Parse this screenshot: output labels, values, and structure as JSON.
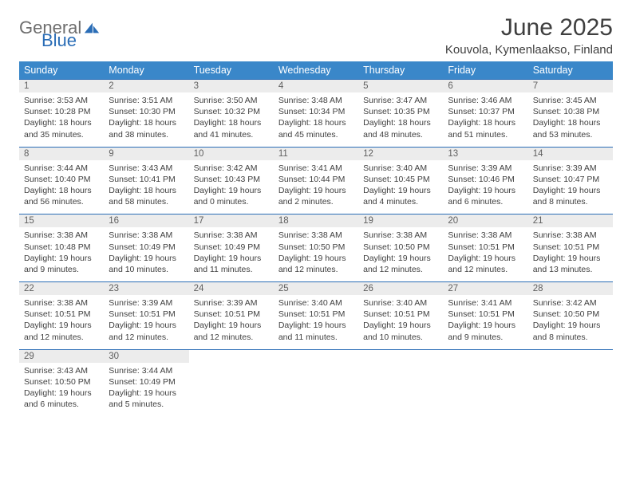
{
  "brand": {
    "word1": "General",
    "word2": "Blue"
  },
  "title": "June 2025",
  "subtitle": "Kouvola, Kymenlaakso, Finland",
  "colors": {
    "header_bg": "#3a87c9",
    "header_text": "#ffffff",
    "daynum_bg": "#ececec",
    "daynum_border": "#2a6db6",
    "logo_gray": "#6e6e6e",
    "logo_blue": "#2a6db6",
    "title_color": "#3f3f3f",
    "body_text": "#404040"
  },
  "weekdays": [
    "Sunday",
    "Monday",
    "Tuesday",
    "Wednesday",
    "Thursday",
    "Friday",
    "Saturday"
  ],
  "weeks": [
    {
      "nums": [
        "1",
        "2",
        "3",
        "4",
        "5",
        "6",
        "7"
      ],
      "cells": [
        {
          "sunrise": "3:53 AM",
          "sunset": "10:28 PM",
          "dl1": "18 hours",
          "dl2": "and 35 minutes."
        },
        {
          "sunrise": "3:51 AM",
          "sunset": "10:30 PM",
          "dl1": "18 hours",
          "dl2": "and 38 minutes."
        },
        {
          "sunrise": "3:50 AM",
          "sunset": "10:32 PM",
          "dl1": "18 hours",
          "dl2": "and 41 minutes."
        },
        {
          "sunrise": "3:48 AM",
          "sunset": "10:34 PM",
          "dl1": "18 hours",
          "dl2": "and 45 minutes."
        },
        {
          "sunrise": "3:47 AM",
          "sunset": "10:35 PM",
          "dl1": "18 hours",
          "dl2": "and 48 minutes."
        },
        {
          "sunrise": "3:46 AM",
          "sunset": "10:37 PM",
          "dl1": "18 hours",
          "dl2": "and 51 minutes."
        },
        {
          "sunrise": "3:45 AM",
          "sunset": "10:38 PM",
          "dl1": "18 hours",
          "dl2": "and 53 minutes."
        }
      ]
    },
    {
      "nums": [
        "8",
        "9",
        "10",
        "11",
        "12",
        "13",
        "14"
      ],
      "cells": [
        {
          "sunrise": "3:44 AM",
          "sunset": "10:40 PM",
          "dl1": "18 hours",
          "dl2": "and 56 minutes."
        },
        {
          "sunrise": "3:43 AM",
          "sunset": "10:41 PM",
          "dl1": "18 hours",
          "dl2": "and 58 minutes."
        },
        {
          "sunrise": "3:42 AM",
          "sunset": "10:43 PM",
          "dl1": "19 hours",
          "dl2": "and 0 minutes."
        },
        {
          "sunrise": "3:41 AM",
          "sunset": "10:44 PM",
          "dl1": "19 hours",
          "dl2": "and 2 minutes."
        },
        {
          "sunrise": "3:40 AM",
          "sunset": "10:45 PM",
          "dl1": "19 hours",
          "dl2": "and 4 minutes."
        },
        {
          "sunrise": "3:39 AM",
          "sunset": "10:46 PM",
          "dl1": "19 hours",
          "dl2": "and 6 minutes."
        },
        {
          "sunrise": "3:39 AM",
          "sunset": "10:47 PM",
          "dl1": "19 hours",
          "dl2": "and 8 minutes."
        }
      ]
    },
    {
      "nums": [
        "15",
        "16",
        "17",
        "18",
        "19",
        "20",
        "21"
      ],
      "cells": [
        {
          "sunrise": "3:38 AM",
          "sunset": "10:48 PM",
          "dl1": "19 hours",
          "dl2": "and 9 minutes."
        },
        {
          "sunrise": "3:38 AM",
          "sunset": "10:49 PM",
          "dl1": "19 hours",
          "dl2": "and 10 minutes."
        },
        {
          "sunrise": "3:38 AM",
          "sunset": "10:49 PM",
          "dl1": "19 hours",
          "dl2": "and 11 minutes."
        },
        {
          "sunrise": "3:38 AM",
          "sunset": "10:50 PM",
          "dl1": "19 hours",
          "dl2": "and 12 minutes."
        },
        {
          "sunrise": "3:38 AM",
          "sunset": "10:50 PM",
          "dl1": "19 hours",
          "dl2": "and 12 minutes."
        },
        {
          "sunrise": "3:38 AM",
          "sunset": "10:51 PM",
          "dl1": "19 hours",
          "dl2": "and 12 minutes."
        },
        {
          "sunrise": "3:38 AM",
          "sunset": "10:51 PM",
          "dl1": "19 hours",
          "dl2": "and 13 minutes."
        }
      ]
    },
    {
      "nums": [
        "22",
        "23",
        "24",
        "25",
        "26",
        "27",
        "28"
      ],
      "cells": [
        {
          "sunrise": "3:38 AM",
          "sunset": "10:51 PM",
          "dl1": "19 hours",
          "dl2": "and 12 minutes."
        },
        {
          "sunrise": "3:39 AM",
          "sunset": "10:51 PM",
          "dl1": "19 hours",
          "dl2": "and 12 minutes."
        },
        {
          "sunrise": "3:39 AM",
          "sunset": "10:51 PM",
          "dl1": "19 hours",
          "dl2": "and 12 minutes."
        },
        {
          "sunrise": "3:40 AM",
          "sunset": "10:51 PM",
          "dl1": "19 hours",
          "dl2": "and 11 minutes."
        },
        {
          "sunrise": "3:40 AM",
          "sunset": "10:51 PM",
          "dl1": "19 hours",
          "dl2": "and 10 minutes."
        },
        {
          "sunrise": "3:41 AM",
          "sunset": "10:51 PM",
          "dl1": "19 hours",
          "dl2": "and 9 minutes."
        },
        {
          "sunrise": "3:42 AM",
          "sunset": "10:50 PM",
          "dl1": "19 hours",
          "dl2": "and 8 minutes."
        }
      ]
    },
    {
      "nums": [
        "29",
        "30",
        "",
        "",
        "",
        "",
        ""
      ],
      "cells": [
        {
          "sunrise": "3:43 AM",
          "sunset": "10:50 PM",
          "dl1": "19 hours",
          "dl2": "and 6 minutes."
        },
        {
          "sunrise": "3:44 AM",
          "sunset": "10:49 PM",
          "dl1": "19 hours",
          "dl2": "and 5 minutes."
        },
        null,
        null,
        null,
        null,
        null
      ]
    }
  ],
  "labels": {
    "sunrise": "Sunrise:",
    "sunset": "Sunset:",
    "daylight": "Daylight:"
  }
}
